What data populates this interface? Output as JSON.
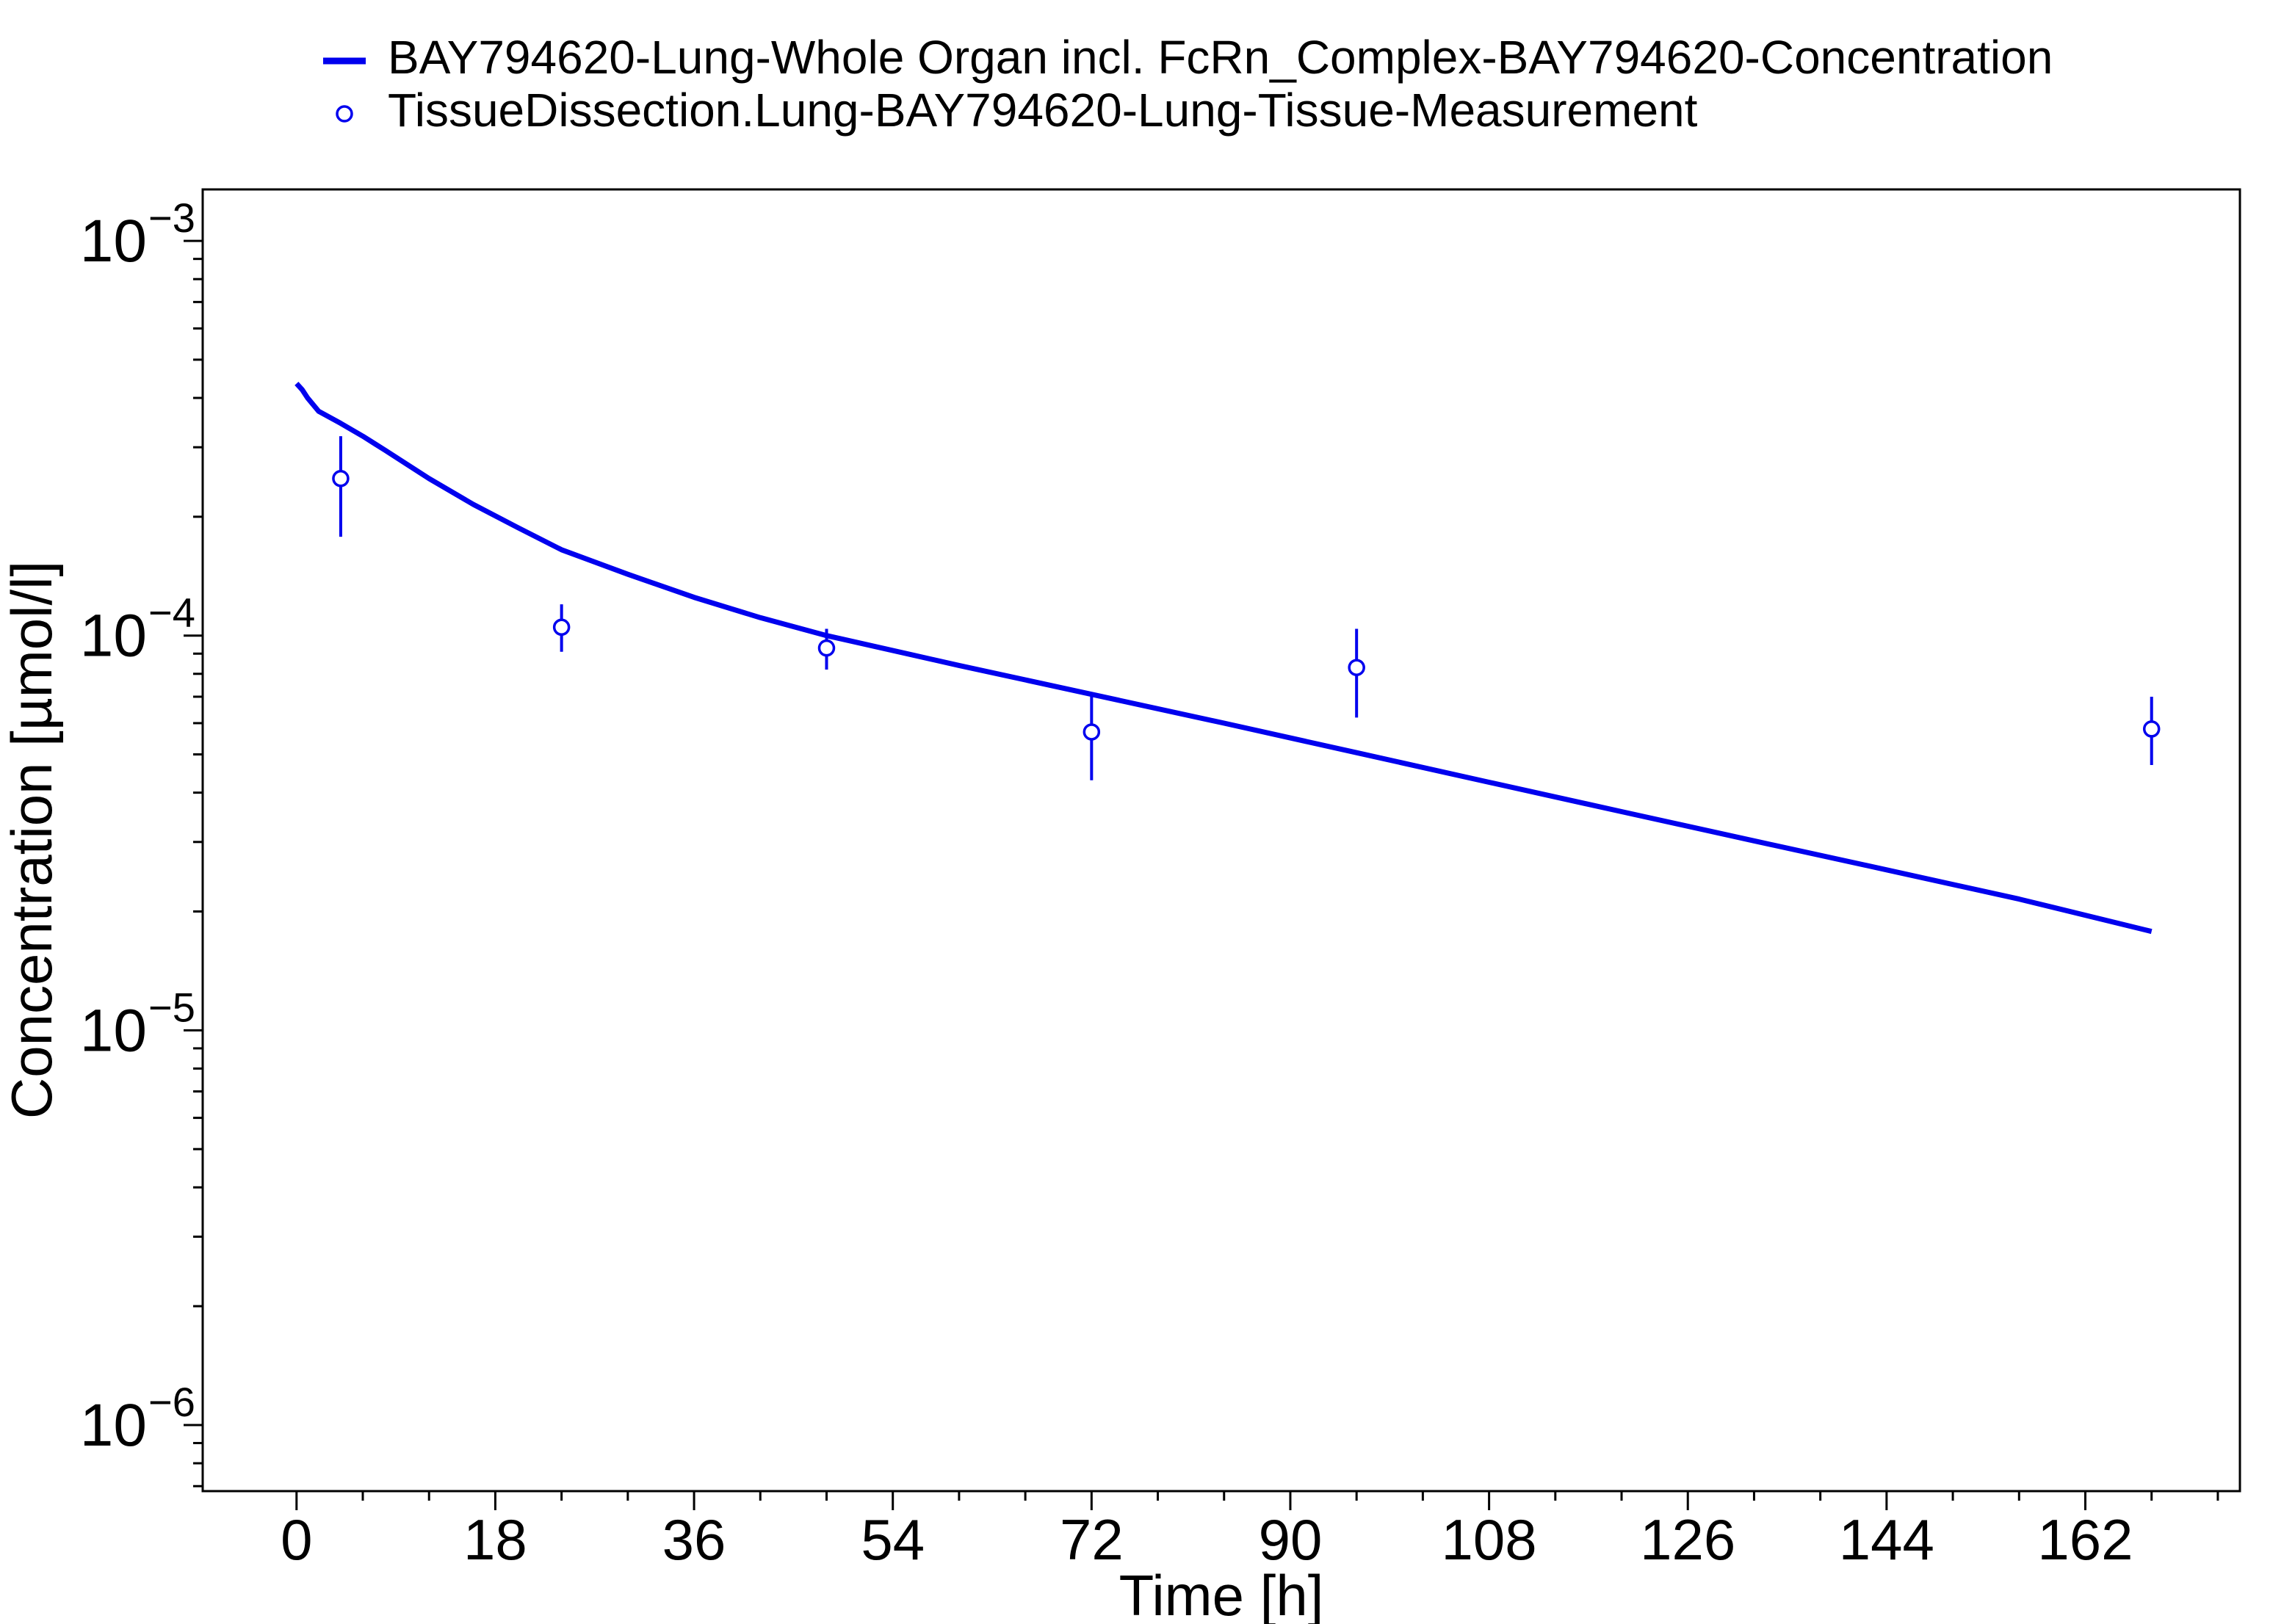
{
  "chart_data": {
    "type": "line",
    "title": "",
    "xlabel": "Time [h]",
    "ylabel": "Concentration [µmol/l]",
    "xlim": [
      -8.5,
      176
    ],
    "ylim": [
      6.8e-07,
      0.00135
    ],
    "yscale": "log",
    "grid": false,
    "legend_position": "top",
    "x_ticks": [
      {
        "value": 0,
        "label": "0"
      },
      {
        "value": 18,
        "label": "18"
      },
      {
        "value": 36,
        "label": "36"
      },
      {
        "value": 54,
        "label": "54"
      },
      {
        "value": 72,
        "label": "72"
      },
      {
        "value": 90,
        "label": "90"
      },
      {
        "value": 108,
        "label": "108"
      },
      {
        "value": 126,
        "label": "126"
      },
      {
        "value": 144,
        "label": "144"
      },
      {
        "value": 162,
        "label": "162"
      }
    ],
    "y_ticks": [
      {
        "value": 0.001,
        "base": "10",
        "exp": "−3"
      },
      {
        "value": 0.0001,
        "base": "10",
        "exp": "−4"
      },
      {
        "value": 1e-05,
        "base": "10",
        "exp": "−5"
      },
      {
        "value": 1e-06,
        "base": "10",
        "exp": "−6"
      }
    ],
    "series": [
      {
        "name": "BAY794620-Lung-Whole Organ incl. FcRn_Complex-BAY794620-Concentration",
        "kind": "line",
        "color": "#0000ee",
        "x": [
          0,
          0.5,
          1,
          2,
          4,
          6,
          8,
          12,
          16,
          20,
          24,
          30,
          36,
          42,
          48,
          60,
          72,
          84,
          96,
          108,
          120,
          132,
          144,
          156,
          168
        ],
        "y": [
          0.000435,
          0.00042,
          0.0004,
          0.00037,
          0.000345,
          0.00032,
          0.000295,
          0.00025,
          0.000215,
          0.000188,
          0.000165,
          0.000143,
          0.000125,
          0.000111,
          0.0001,
          8.4e-05,
          7.1e-05,
          6e-05,
          5.05e-05,
          4.25e-05,
          3.58e-05,
          3.02e-05,
          2.55e-05,
          2.15e-05,
          1.78e-05
        ]
      },
      {
        "name": "TissueDissection.Lung-BAY794620-Lung-Tissue-Measurement",
        "kind": "scatter",
        "color": "#0000ee",
        "x": [
          4,
          24,
          48,
          72,
          96,
          168
        ],
        "y": [
          0.00025,
          0.000105,
          9.3e-05,
          5.7e-05,
          8.3e-05,
          5.8e-05
        ],
        "y_err_low": [
          0.000178,
          9.1e-05,
          8.2e-05,
          4.3e-05,
          6.2e-05,
          4.7e-05
        ],
        "y_err_high": [
          0.00032,
          0.00012,
          0.000104,
          7.1e-05,
          0.000104,
          7e-05
        ]
      }
    ]
  }
}
